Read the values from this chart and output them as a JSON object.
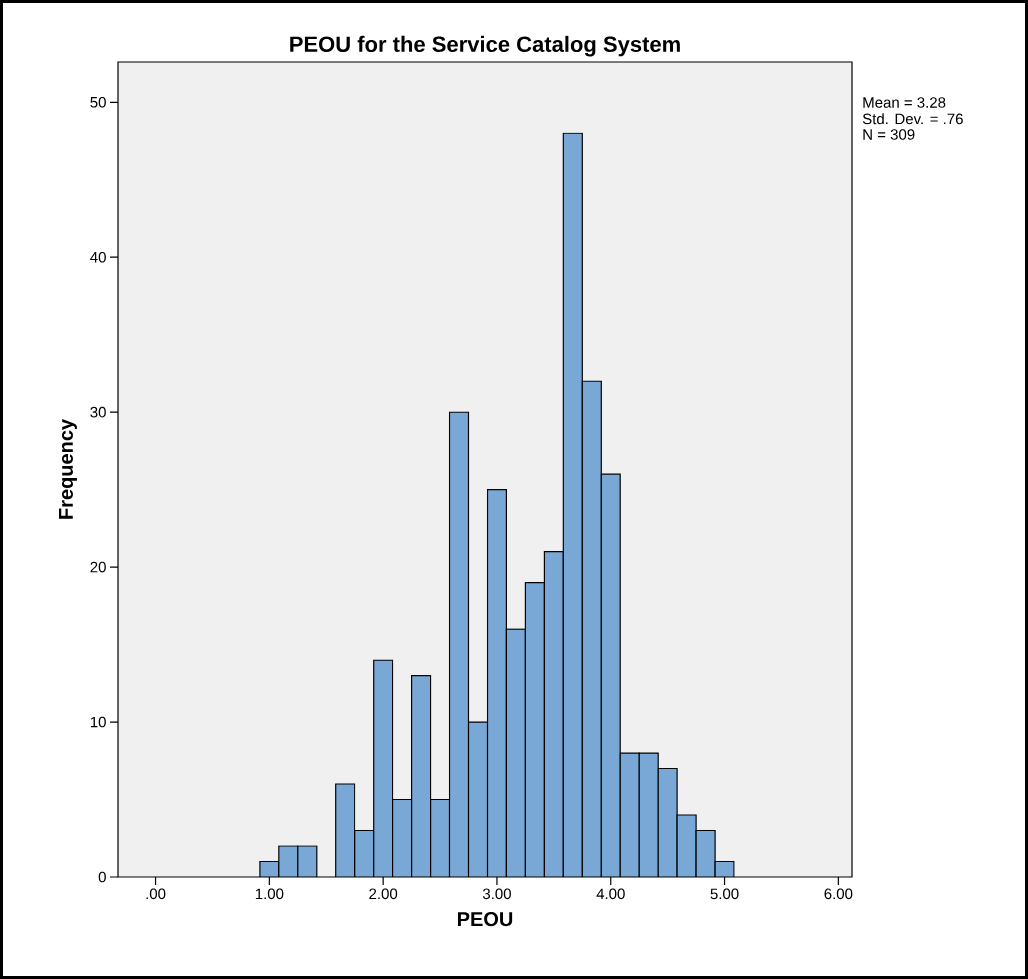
{
  "chart_data": {
    "type": "histogram",
    "title": "PEOU for the Service Catalog System",
    "xlabel": "PEOU",
    "ylabel": "Frequency",
    "color": "#7aa8d6",
    "bins": [
      0.917,
      1.083,
      1.25,
      1.417,
      1.583,
      1.75,
      1.917,
      2.083,
      2.25,
      2.417,
      2.583,
      2.75,
      2.917,
      3.083,
      3.25,
      3.417,
      3.583,
      3.75,
      3.917,
      4.083,
      4.25,
      4.417,
      4.583,
      4.75,
      4.917,
      5.083
    ],
    "values": [
      1,
      2,
      2,
      0,
      6,
      3,
      14,
      5,
      13,
      5,
      30,
      10,
      25,
      16,
      19,
      21,
      48,
      32,
      26,
      8,
      8,
      7,
      4,
      3,
      1
    ],
    "xlim": [
      -0.33,
      6.12
    ],
    "ylim": [
      0,
      52.6
    ],
    "xticks": [
      {
        "value": 0,
        "label": ".00"
      },
      {
        "value": 1,
        "label": "1.00"
      },
      {
        "value": 2,
        "label": "2.00"
      },
      {
        "value": 3,
        "label": "3.00"
      },
      {
        "value": 4,
        "label": "4.00"
      },
      {
        "value": 5,
        "label": "5.00"
      },
      {
        "value": 6,
        "label": "6.00"
      }
    ],
    "yticks": [
      0,
      10,
      20,
      30,
      40,
      50
    ],
    "annotations": [
      "Mean = 3.28",
      "Std. Dev. = .76",
      "N = 309"
    ]
  }
}
